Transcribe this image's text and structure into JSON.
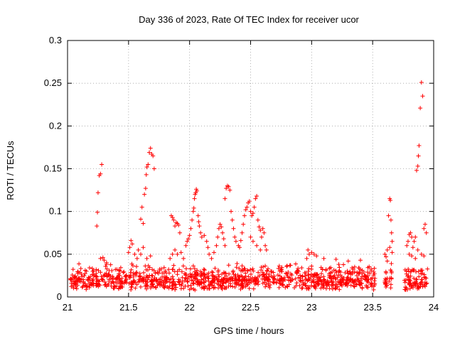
{
  "chart_data": {
    "type": "scatter",
    "title": "Day 336 of 2023, Rate Of TEC Index for receiver ucor",
    "xlabel": "GPS time / hours",
    "ylabel": "ROTI / TECUs",
    "xlim": [
      21,
      24
    ],
    "ylim": [
      0,
      0.3
    ],
    "xticks": [
      "21",
      "21.5",
      "22",
      "22.5",
      "23",
      "23.5",
      "24"
    ],
    "yticks": [
      "0",
      "0.05",
      "0.1",
      "0.15",
      "0.2",
      "0.25",
      "0.3"
    ],
    "grid": true,
    "marker": "plus",
    "color": "#ff0000",
    "background_band": {
      "segments": [
        [
          21.02,
          22.48
        ],
        [
          22.48,
          23.52
        ],
        [
          23.6,
          23.66
        ],
        [
          23.76,
          23.95
        ]
      ],
      "y_low": 0.008,
      "y_high": 0.04
    },
    "points": [
      [
        21.24,
        0.083
      ],
      [
        21.245,
        0.099
      ],
      [
        21.25,
        0.122
      ],
      [
        21.26,
        0.142
      ],
      [
        21.27,
        0.144
      ],
      [
        21.28,
        0.155
      ],
      [
        21.27,
        0.045
      ],
      [
        21.29,
        0.046
      ],
      [
        21.3,
        0.043
      ],
      [
        21.32,
        0.04
      ],
      [
        21.5,
        0.052
      ],
      [
        21.51,
        0.058
      ],
      [
        21.52,
        0.066
      ],
      [
        21.53,
        0.062
      ],
      [
        21.55,
        0.05
      ],
      [
        21.57,
        0.045
      ],
      [
        21.6,
        0.091
      ],
      [
        21.61,
        0.105
      ],
      [
        21.62,
        0.086
      ],
      [
        21.63,
        0.12
      ],
      [
        21.64,
        0.127
      ],
      [
        21.645,
        0.143
      ],
      [
        21.65,
        0.152
      ],
      [
        21.66,
        0.155
      ],
      [
        21.67,
        0.169
      ],
      [
        21.68,
        0.174
      ],
      [
        21.69,
        0.167
      ],
      [
        21.7,
        0.165
      ],
      [
        21.71,
        0.15
      ],
      [
        21.58,
        0.055
      ],
      [
        21.6,
        0.05
      ],
      [
        21.62,
        0.058
      ],
      [
        21.65,
        0.045
      ],
      [
        21.68,
        0.048
      ],
      [
        21.85,
        0.095
      ],
      [
        21.86,
        0.093
      ],
      [
        21.87,
        0.09
      ],
      [
        21.88,
        0.083
      ],
      [
        21.89,
        0.087
      ],
      [
        21.9,
        0.086
      ],
      [
        21.91,
        0.084
      ],
      [
        21.92,
        0.075
      ],
      [
        21.84,
        0.045
      ],
      [
        21.86,
        0.05
      ],
      [
        21.88,
        0.055
      ],
      [
        21.9,
        0.05
      ],
      [
        21.93,
        0.052
      ],
      [
        21.95,
        0.045
      ],
      [
        21.97,
        0.06
      ],
      [
        21.98,
        0.065
      ],
      [
        21.99,
        0.068
      ],
      [
        22.0,
        0.072
      ],
      [
        22.01,
        0.08
      ],
      [
        22.02,
        0.09
      ],
      [
        22.03,
        0.1
      ],
      [
        22.035,
        0.104
      ],
      [
        22.04,
        0.115
      ],
      [
        22.045,
        0.12
      ],
      [
        22.05,
        0.122
      ],
      [
        22.055,
        0.126
      ],
      [
        22.06,
        0.124
      ],
      [
        22.07,
        0.095
      ],
      [
        22.075,
        0.088
      ],
      [
        22.08,
        0.083
      ],
      [
        22.09,
        0.075
      ],
      [
        22.1,
        0.07
      ],
      [
        22.12,
        0.072
      ],
      [
        22.14,
        0.065
      ],
      [
        22.15,
        0.058
      ],
      [
        22.16,
        0.05
      ],
      [
        22.18,
        0.045
      ],
      [
        22.2,
        0.052
      ],
      [
        22.22,
        0.06
      ],
      [
        22.23,
        0.07
      ],
      [
        22.24,
        0.08
      ],
      [
        22.25,
        0.085
      ],
      [
        22.26,
        0.082
      ],
      [
        22.27,
        0.075
      ],
      [
        22.28,
        0.068
      ],
      [
        22.29,
        0.06
      ],
      [
        22.3,
        0.127
      ],
      [
        22.31,
        0.13
      ],
      [
        22.32,
        0.129
      ],
      [
        22.33,
        0.125
      ],
      [
        22.29,
        0.115
      ],
      [
        22.34,
        0.1
      ],
      [
        22.35,
        0.09
      ],
      [
        22.36,
        0.08
      ],
      [
        22.37,
        0.07
      ],
      [
        22.38,
        0.065
      ],
      [
        22.4,
        0.06
      ],
      [
        22.41,
        0.058
      ],
      [
        22.42,
        0.066
      ],
      [
        22.43,
        0.075
      ],
      [
        22.44,
        0.085
      ],
      [
        22.45,
        0.095
      ],
      [
        22.46,
        0.102
      ],
      [
        22.47,
        0.105
      ],
      [
        22.48,
        0.11
      ],
      [
        22.49,
        0.112
      ],
      [
        22.5,
        0.1
      ],
      [
        22.51,
        0.095
      ],
      [
        22.52,
        0.098
      ],
      [
        22.53,
        0.105
      ],
      [
        22.54,
        0.115
      ],
      [
        22.55,
        0.118
      ],
      [
        22.56,
        0.09
      ],
      [
        22.57,
        0.082
      ],
      [
        22.58,
        0.078
      ],
      [
        22.59,
        0.07
      ],
      [
        22.6,
        0.08
      ],
      [
        22.61,
        0.075
      ],
      [
        22.62,
        0.06
      ],
      [
        22.63,
        0.055
      ],
      [
        22.5,
        0.07
      ],
      [
        22.52,
        0.065
      ],
      [
        22.55,
        0.06
      ],
      [
        22.58,
        0.055
      ],
      [
        22.97,
        0.055
      ],
      [
        22.98,
        0.05
      ],
      [
        23.0,
        0.052
      ],
      [
        23.02,
        0.05
      ],
      [
        23.04,
        0.048
      ],
      [
        22.96,
        0.045
      ],
      [
        23.1,
        0.045
      ],
      [
        23.2,
        0.044
      ],
      [
        23.3,
        0.042
      ],
      [
        23.4,
        0.043
      ],
      [
        23.6,
        0.05
      ],
      [
        23.61,
        0.047
      ],
      [
        23.62,
        0.042
      ],
      [
        23.63,
        0.095
      ],
      [
        23.64,
        0.115
      ],
      [
        23.645,
        0.113
      ],
      [
        23.65,
        0.09
      ],
      [
        23.655,
        0.075
      ],
      [
        23.66,
        0.065
      ],
      [
        23.62,
        0.055
      ],
      [
        23.64,
        0.058
      ],
      [
        23.66,
        0.052
      ],
      [
        23.78,
        0.06
      ],
      [
        23.79,
        0.065
      ],
      [
        23.8,
        0.073
      ],
      [
        23.81,
        0.075
      ],
      [
        23.82,
        0.07
      ],
      [
        23.83,
        0.058
      ],
      [
        23.84,
        0.065
      ],
      [
        23.85,
        0.07
      ],
      [
        23.86,
        0.148
      ],
      [
        23.87,
        0.153
      ],
      [
        23.875,
        0.165
      ],
      [
        23.88,
        0.177
      ],
      [
        23.89,
        0.221
      ],
      [
        23.9,
        0.251
      ],
      [
        23.91,
        0.235
      ],
      [
        23.92,
        0.08
      ],
      [
        23.93,
        0.085
      ],
      [
        23.94,
        0.075
      ],
      [
        23.9,
        0.05
      ],
      [
        23.92,
        0.048
      ],
      [
        23.87,
        0.055
      ],
      [
        23.85,
        0.045
      ],
      [
        23.82,
        0.048
      ],
      [
        23.8,
        0.05
      ]
    ]
  }
}
